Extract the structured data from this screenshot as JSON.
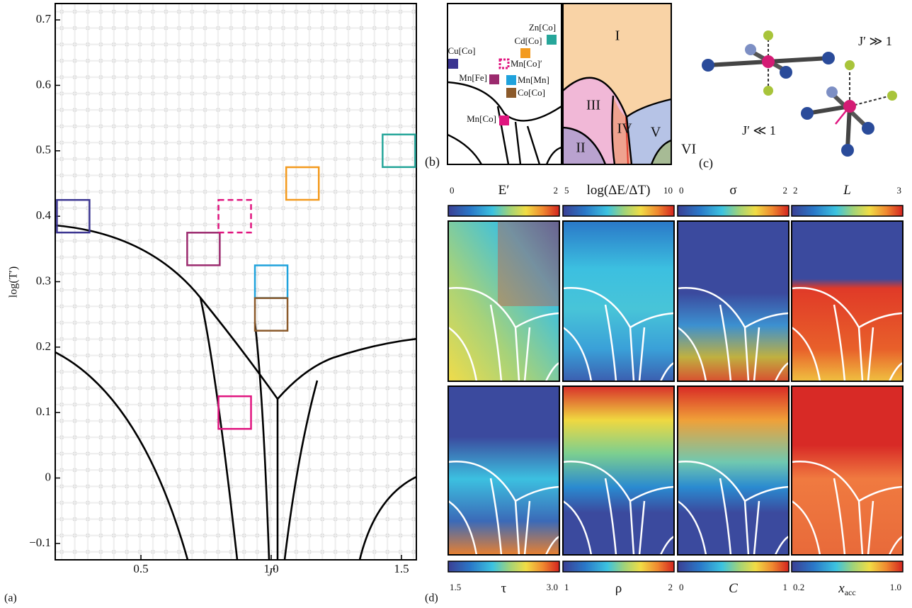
{
  "panel_a": {
    "label": "(a)",
    "x_label": "J′",
    "y_label": "log(T′)",
    "xlim": [
      0.171,
      1.557
    ],
    "ylim": [
      -0.125,
      0.725
    ],
    "xticks": [
      0.5,
      {
        "value": 1.0,
        "label": "1.0"
      },
      1.5
    ],
    "yticks": [
      {
        "value": -0.1,
        "label": "−0.1"
      },
      0,
      0.1,
      0.2,
      0.3,
      0.4,
      0.5,
      0.6,
      0.7
    ],
    "markers": [
      {
        "x": 0.24,
        "y": 0.4,
        "color": "#3b3591"
      },
      {
        "x": 0.74,
        "y": 0.35,
        "color": "#9b2a6e"
      },
      {
        "x": 0.86,
        "y": 0.4,
        "color": "#e0157f",
        "dashed": true
      },
      {
        "x": 1.12,
        "y": 0.45,
        "color": "#f39a1e"
      },
      {
        "x": 1.49,
        "y": 0.5,
        "color": "#26a69a"
      },
      {
        "x": 1.0,
        "y": 0.3,
        "color": "#1fa2dc"
      },
      {
        "x": 1.0,
        "y": 0.25,
        "color": "#8b5a2b"
      },
      {
        "x": 0.86,
        "y": 0.1,
        "color": "#e0157f"
      }
    ]
  },
  "panel_b": {
    "label": "(b)",
    "compounds": [
      "Cu[Co]",
      "Cd[Co]",
      "Zn[Co]",
      "Mn[Co]′",
      "Mn[Fe]",
      "Mn[Mn]",
      "Co[Co]",
      "Mn[Co]"
    ],
    "phases": [
      "I",
      "II",
      "III",
      "IV",
      "V",
      "VI"
    ]
  },
  "panel_c": {
    "label": "(c)",
    "annotations": [
      "J′ ≫ 1",
      "J′ ≪ 1"
    ]
  },
  "panel_d": {
    "label": "(d)",
    "maps": [
      {
        "title": "E′",
        "min": "0",
        "max": "2"
      },
      {
        "title": "log(ΔE/ΔT)",
        "min": "5",
        "max": "10"
      },
      {
        "title": "σ",
        "min": "0",
        "max": "2"
      },
      {
        "title": "L",
        "min": "2",
        "max": "3"
      },
      {
        "title": "τ",
        "min": "1.5",
        "max": "3.0"
      },
      {
        "title": "ρ",
        "min": "1",
        "max": "2"
      },
      {
        "title": "C",
        "min": "0",
        "max": "1"
      },
      {
        "title": "x",
        "subscript": "acc",
        "min": "0.2",
        "max": "1.0"
      }
    ]
  }
}
